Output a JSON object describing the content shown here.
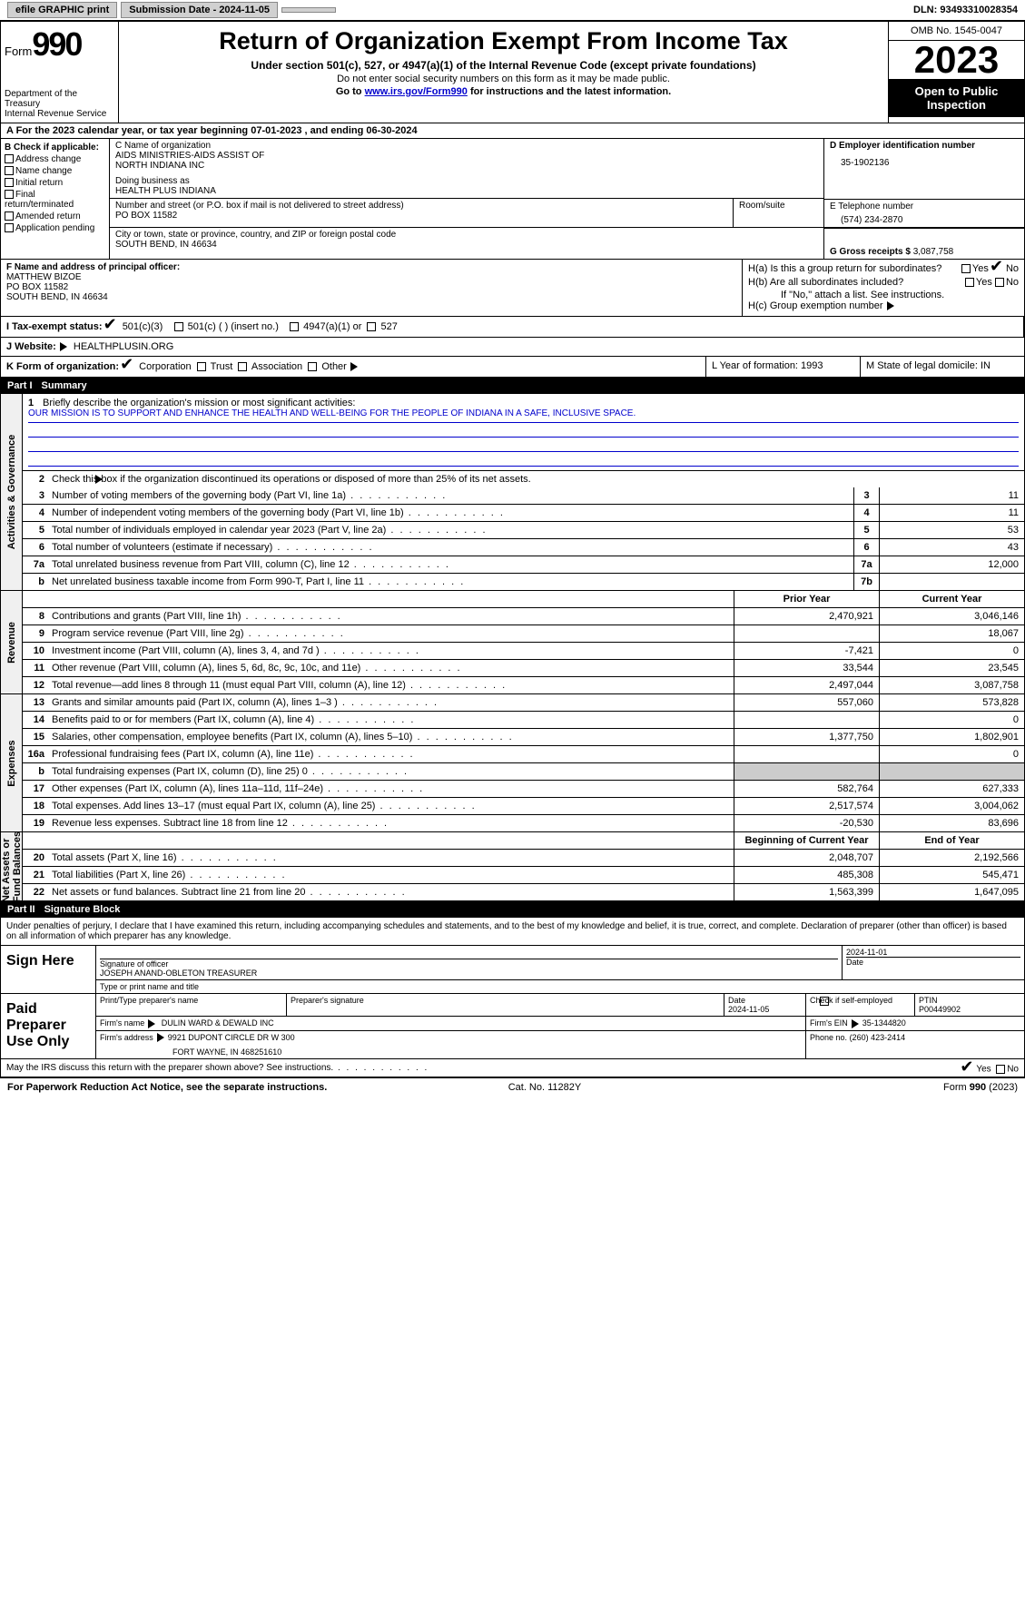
{
  "topbar": {
    "efile": "efile GRAPHIC print",
    "submission": "Submission Date - 2024-11-05",
    "dln": "DLN: 93493310028354"
  },
  "header": {
    "form": "Form",
    "num": "990",
    "title": "Return of Organization Exempt From Income Tax",
    "sub1": "Under section 501(c), 527, or 4947(a)(1) of the Internal Revenue Code (except private foundations)",
    "sub2": "Do not enter social security numbers on this form as it may be made public.",
    "sub3_pre": "Go to ",
    "sub3_link": "www.irs.gov/Form990",
    "sub3_post": " for instructions and the latest information.",
    "dept": "Department of the Treasury",
    "irs": "Internal Revenue Service",
    "omb": "OMB No. 1545-0047",
    "year": "2023",
    "inspect": "Open to Public Inspection"
  },
  "rowA": {
    "pre": "A For the 2023 calendar year, or tax year beginning ",
    "begin": "07-01-2023",
    "mid": "   , and ending ",
    "end": "06-30-2024"
  },
  "colB": {
    "hdr": "B Check if applicable:",
    "items": [
      "Address change",
      "Name change",
      "Initial return",
      "Final return/terminated",
      "Amended return",
      "Application pending"
    ]
  },
  "colC": {
    "name_lbl": "C Name of organization",
    "name": "AIDS MINISTRIES-AIDS ASSIST OF\nNORTH INDIANA INC",
    "dba_lbl": "Doing business as",
    "dba": "HEALTH PLUS INDIANA",
    "addr_lbl": "Number and street (or P.O. box if mail is not delivered to street address)",
    "addr": "PO BOX 11582",
    "room_lbl": "Room/suite",
    "city_lbl": "City or town, state or province, country, and ZIP or foreign postal code",
    "city": "SOUTH BEND, IN  46634"
  },
  "colD": {
    "lbl": "D Employer identification number",
    "val": "35-1902136"
  },
  "colE": {
    "lbl": "E Telephone number",
    "val": "(574) 234-2870"
  },
  "colG": {
    "lbl": "G Gross receipts $",
    "val": "3,087,758"
  },
  "colF": {
    "lbl": "F  Name and address of principal officer:",
    "name": "MATTHEW BIZOE",
    "addr1": "PO BOX 11582",
    "addr2": "SOUTH BEND, IN  46634"
  },
  "colH": {
    "a": "H(a)  Is this a group return for subordinates?",
    "a_yes": "Yes",
    "a_no": "No",
    "b": "H(b)  Are all subordinates included?",
    "b_yes": "Yes",
    "b_no": "No",
    "note": "If \"No,\" attach a list. See instructions.",
    "c": "H(c)  Group exemption number",
    "c_arrow": true
  },
  "rowI": {
    "lbl": "I   Tax-exempt status:",
    "c1": "501(c)(3)",
    "c2": "501(c) (  ) (insert no.)",
    "c3": "4947(a)(1) or",
    "c4": "527"
  },
  "rowJ": {
    "lbl": "J   Website:",
    "arrow": true,
    "val": "HEALTHPLUSIN.ORG"
  },
  "rowK": {
    "lbl": "K Form of organization:",
    "c1": "Corporation",
    "c2": "Trust",
    "c3": "Association",
    "c4": "Other",
    "arrow": true,
    "l": "L Year of formation: 1993",
    "m": "M State of legal domicile: IN"
  },
  "part1": {
    "num": "Part I",
    "title": "Summary"
  },
  "vtabs": {
    "g": "Activities & Governance",
    "r": "Revenue",
    "e": "Expenses",
    "n": "Net Assets or\nFund Balances"
  },
  "mission": {
    "lbl": "Briefly describe the organization's mission or most significant activities:",
    "txt": "OUR MISSION IS TO SUPPORT AND ENHANCE THE HEALTH AND WELL-BEING FOR THE PEOPLE OF INDIANA IN A SAFE, INCLUSIVE SPACE."
  },
  "line2": "Check this box       if the organization discontinued its operations or disposed of more than 25% of its net assets.",
  "gov": [
    {
      "n": "3",
      "t": "Number of voting members of the governing body (Part VI, line 1a)",
      "b": "3",
      "v": "11"
    },
    {
      "n": "4",
      "t": "Number of independent voting members of the governing body (Part VI, line 1b)",
      "b": "4",
      "v": "11"
    },
    {
      "n": "5",
      "t": "Total number of individuals employed in calendar year 2023 (Part V, line 2a)",
      "b": "5",
      "v": "53"
    },
    {
      "n": "6",
      "t": "Total number of volunteers (estimate if necessary)",
      "b": "6",
      "v": "43"
    },
    {
      "n": "7a",
      "t": "Total unrelated business revenue from Part VIII, column (C), line 12",
      "b": "7a",
      "v": "12,000"
    },
    {
      "n": "b",
      "t": "Net unrelated business taxable income from Form 990-T, Part I, line 11",
      "b": "7b",
      "v": ""
    }
  ],
  "rev_hdr": {
    "p": "Prior Year",
    "c": "Current Year"
  },
  "rev": [
    {
      "n": "8",
      "t": "Contributions and grants (Part VIII, line 1h)",
      "p": "2,470,921",
      "c": "3,046,146"
    },
    {
      "n": "9",
      "t": "Program service revenue (Part VIII, line 2g)",
      "p": "",
      "c": "18,067"
    },
    {
      "n": "10",
      "t": "Investment income (Part VIII, column (A), lines 3, 4, and 7d )",
      "p": "-7,421",
      "c": "0"
    },
    {
      "n": "11",
      "t": "Other revenue (Part VIII, column (A), lines 5, 6d, 8c, 9c, 10c, and 11e)",
      "p": "33,544",
      "c": "23,545"
    },
    {
      "n": "12",
      "t": "Total revenue—add lines 8 through 11 (must equal Part VIII, column (A), line 12)",
      "p": "2,497,044",
      "c": "3,087,758"
    }
  ],
  "exp": [
    {
      "n": "13",
      "t": "Grants and similar amounts paid (Part IX, column (A), lines 1–3 )",
      "p": "557,060",
      "c": "573,828"
    },
    {
      "n": "14",
      "t": "Benefits paid to or for members (Part IX, column (A), line 4)",
      "p": "",
      "c": "0"
    },
    {
      "n": "15",
      "t": "Salaries, other compensation, employee benefits (Part IX, column (A), lines 5–10)",
      "p": "1,377,750",
      "c": "1,802,901"
    },
    {
      "n": "16a",
      "t": "Professional fundraising fees (Part IX, column (A), line 11e)",
      "p": "",
      "c": "0"
    },
    {
      "n": "b",
      "t": "Total fundraising expenses (Part IX, column (D), line 25) 0",
      "p": "shade",
      "c": "shade"
    },
    {
      "n": "17",
      "t": "Other expenses (Part IX, column (A), lines 11a–11d, 11f–24e)",
      "p": "582,764",
      "c": "627,333"
    },
    {
      "n": "18",
      "t": "Total expenses. Add lines 13–17 (must equal Part IX, column (A), line 25)",
      "p": "2,517,574",
      "c": "3,004,062"
    },
    {
      "n": "19",
      "t": "Revenue less expenses. Subtract line 18 from line 12",
      "p": "-20,530",
      "c": "83,696"
    }
  ],
  "net_hdr": {
    "p": "Beginning of Current Year",
    "c": "End of Year"
  },
  "net": [
    {
      "n": "20",
      "t": "Total assets (Part X, line 16)",
      "p": "2,048,707",
      "c": "2,192,566"
    },
    {
      "n": "21",
      "t": "Total liabilities (Part X, line 26)",
      "p": "485,308",
      "c": "545,471"
    },
    {
      "n": "22",
      "t": "Net assets or fund balances. Subtract line 21 from line 20",
      "p": "1,563,399",
      "c": "1,647,095"
    }
  ],
  "part2": {
    "num": "Part II",
    "title": "Signature Block"
  },
  "sig": {
    "intro": "Under penalties of perjury, I declare that I have examined this return, including accompanying schedules and statements, and to the best of my knowledge and belief, it is true, correct, and complete. Declaration of preparer (other than officer) is based on all information of which preparer has any knowledge.",
    "here": "Sign Here",
    "paid": "Paid Preparer Use Only",
    "sig_officer": "Signature of officer",
    "officer": "JOSEPH ANAND-OBLETON  TREASURER",
    "type_name": "Type or print name and title",
    "date_lbl": "Date",
    "date1": "2024-11-01",
    "prep_name_lbl": "Print/Type preparer's name",
    "prep_sig_lbl": "Preparer's signature",
    "date2": "2024-11-05",
    "check_self": "Check        if self-employed",
    "ptin_lbl": "PTIN",
    "ptin": "P00449902",
    "firm_name_lbl": "Firm's name",
    "firm_name": "DULIN WARD & DEWALD INC",
    "firm_ein_lbl": "Firm's EIN",
    "firm_ein": "35-1344820",
    "firm_addr_lbl": "Firm's address",
    "firm_addr": "9921 DUPONT CIRCLE DR W 300",
    "firm_city": "FORT WAYNE, IN  468251610",
    "phone_lbl": "Phone no.",
    "phone": "(260) 423-2414",
    "discuss": "May the IRS discuss this return with the preparer shown above? See instructions.",
    "yes": "Yes",
    "no": "No"
  },
  "footer": {
    "l": "For Paperwork Reduction Act Notice, see the separate instructions.",
    "m": "Cat. No. 11282Y",
    "r": "Form 990 (2023)"
  }
}
